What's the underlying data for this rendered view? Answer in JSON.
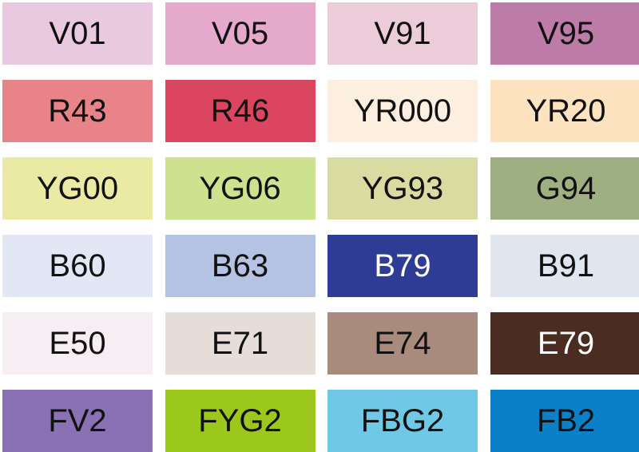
{
  "swatches": [
    {
      "code": "V01",
      "color": "#e8c9e0",
      "text": "#111111"
    },
    {
      "code": "V05",
      "color": "#e4a9cb",
      "text": "#111111"
    },
    {
      "code": "V91",
      "color": "#ecccd8",
      "text": "#111111"
    },
    {
      "code": "V95",
      "color": "#bd7ba8",
      "text": "#111111"
    },
    {
      "code": "R43",
      "color": "#e9838a",
      "text": "#111111"
    },
    {
      "code": "R46",
      "color": "#dc455f",
      "text": "#111111"
    },
    {
      "code": "YR000",
      "color": "#fdf0e1",
      "text": "#111111"
    },
    {
      "code": "YR20",
      "color": "#fde3c0",
      "text": "#111111"
    },
    {
      "code": "YG00",
      "color": "#ebeaa4",
      "text": "#111111"
    },
    {
      "code": "YG06",
      "color": "#cde28f",
      "text": "#111111"
    },
    {
      "code": "YG93",
      "color": "#d9dba0",
      "text": "#111111"
    },
    {
      "code": "G94",
      "color": "#9eaf82",
      "text": "#111111"
    },
    {
      "code": "B60",
      "color": "#e2e7f5",
      "text": "#111111"
    },
    {
      "code": "B63",
      "color": "#b4c3e4",
      "text": "#111111"
    },
    {
      "code": "B79",
      "color": "#2e3c96",
      "text": "#ffffff"
    },
    {
      "code": "B91",
      "color": "#dfe6f0",
      "text": "#111111"
    },
    {
      "code": "E50",
      "color": "#f6eef2",
      "text": "#111111"
    },
    {
      "code": "E71",
      "color": "#e7ddd8",
      "text": "#111111"
    },
    {
      "code": "E74",
      "color": "#a98b7d",
      "text": "#111111"
    },
    {
      "code": "E79",
      "color": "#4a2d20",
      "text": "#ffffff"
    },
    {
      "code": "FV2",
      "color": "#8a70b4",
      "text": "#111111"
    },
    {
      "code": "FYG2",
      "color": "#9cc81e",
      "text": "#111111"
    },
    {
      "code": "FBG2",
      "color": "#6ec8e6",
      "text": "#111111"
    },
    {
      "code": "FB2",
      "color": "#0a80c8",
      "text": "#111111"
    }
  ]
}
